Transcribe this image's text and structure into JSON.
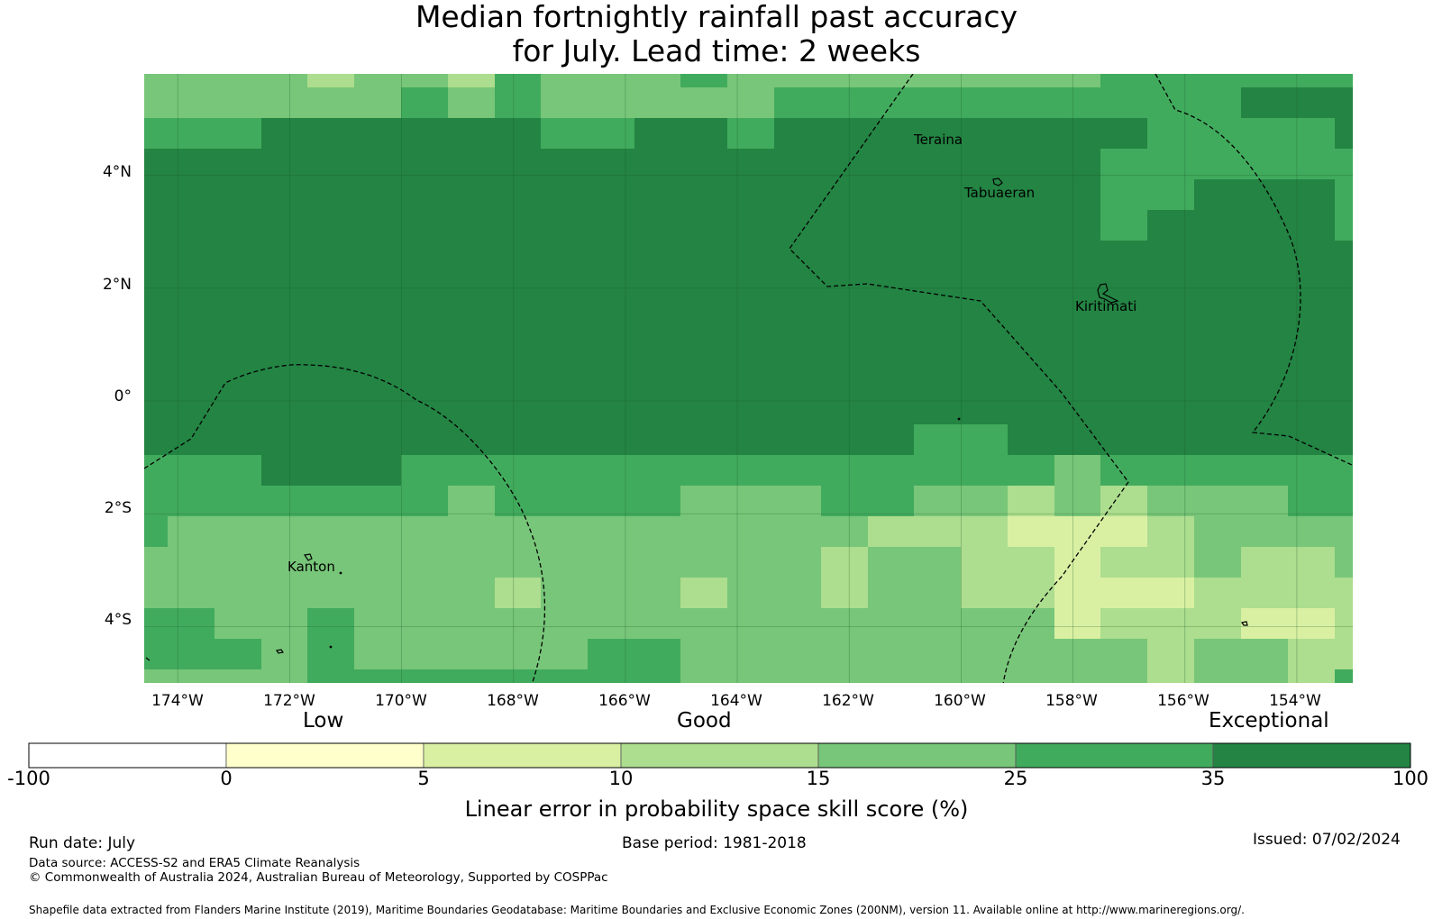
{
  "title": {
    "line1": "Median fortnightly rainfall past accuracy",
    "line2": "for July. Lead time: 2 weeks"
  },
  "map": {
    "lon_range": [
      -174.6,
      -153.0
    ],
    "lat_range": [
      -5.0,
      5.8
    ],
    "x_ticks": [
      "174°W",
      "172°W",
      "170°W",
      "168°W",
      "166°W",
      "164°W",
      "162°W",
      "160°W",
      "158°W",
      "156°W",
      "154°W"
    ],
    "x_tick_values": [
      -174,
      -172,
      -170,
      -168,
      -166,
      -164,
      -162,
      -160,
      -158,
      -156,
      -154
    ],
    "y_ticks": [
      "4°N",
      "2°N",
      "0°",
      "2°S",
      "4°S"
    ],
    "y_tick_values": [
      4,
      2,
      0,
      -2,
      -4
    ],
    "gridlines": true,
    "places": [
      {
        "name": "Teraina",
        "lon": -160.4,
        "lat": 4.7
      },
      {
        "name": "Tabuaeran",
        "lon": -159.35,
        "lat": 3.85
      },
      {
        "name": "Kiritimati",
        "lon": -157.4,
        "lat": 1.9
      },
      {
        "name": "Kanton",
        "lon": -171.7,
        "lat": -2.8
      }
    ],
    "colors": {
      "c0": "#ffffcc",
      "c5": "#d9f0a3",
      "c10": "#addd8e",
      "c15": "#78c679",
      "c25": "#41ab5d",
      "c35": "#238443"
    }
  },
  "colorbar": {
    "categories": [
      "Low",
      "Good",
      "Exceptional"
    ],
    "bins": [
      {
        "from": "-100",
        "to": "0",
        "color": "#ffffff"
      },
      {
        "from": "0",
        "to": "5",
        "color": "#ffffcc"
      },
      {
        "from": "5",
        "to": "10",
        "color": "#d9f0a3"
      },
      {
        "from": "10",
        "to": "15",
        "color": "#addd8e"
      },
      {
        "from": "15",
        "to": "25",
        "color": "#78c679"
      },
      {
        "from": "25",
        "to": "35",
        "color": "#41ab5d"
      },
      {
        "from": "35",
        "to": "100",
        "color": "#238443"
      }
    ],
    "tick_labels": [
      "-100",
      "0",
      "5",
      "10",
      "15",
      "25",
      "35",
      "100"
    ],
    "label": "Linear error in probability space skill score (%)"
  },
  "footer": {
    "run_date": "Run date: July",
    "base_period": "Base period: 1981-2018",
    "issued": "Issued: 07/02/2024",
    "data_source": "Data source: ACCESS-S2 and ERA5 Climate Reanalysis",
    "copyright": "© Commonwealth of Australia 2024, Australian Bureau of Meteorology, Supported by COSPPac",
    "shapefile": "Shapefile data extracted from Flanders Marine Institute (2019), Maritime Boundaries Geodatabase: Maritime Boundaries and Exclusive Economic Zones (200NM), version 11. Available online at http://www.marineregions.org/."
  }
}
